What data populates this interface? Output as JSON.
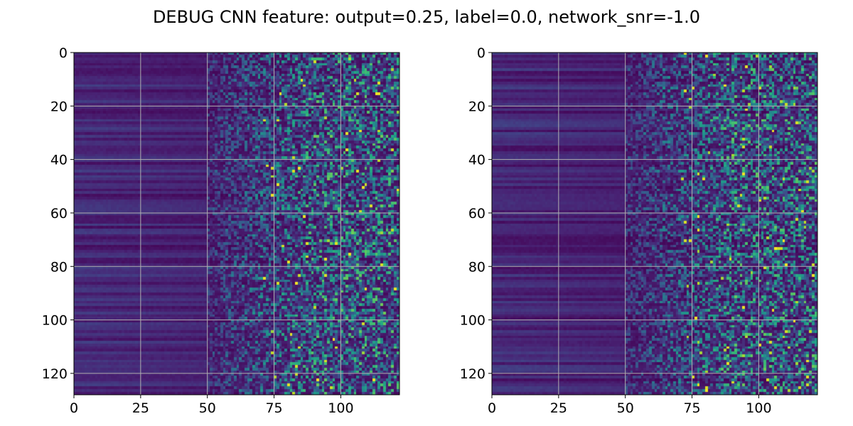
{
  "figure": {
    "title": "DEBUG CNN feature: output=0.25, label=0.0, network_snr=-1.0"
  },
  "chart_data": [
    {
      "type": "heatmap",
      "title": "",
      "xlabel": "",
      "ylabel": "",
      "colormap": "viridis",
      "colors": {
        "low": "#440154",
        "mid": "#21918c",
        "high": "#fde725"
      },
      "rows": 128,
      "cols": 122,
      "xlim": [
        0,
        122
      ],
      "ylim": [
        128,
        0
      ],
      "x_ticks": [
        0,
        25,
        50,
        75,
        100
      ],
      "x_tick_labels": [
        "0",
        "25",
        "50",
        "75",
        "100"
      ],
      "y_ticks": [
        0,
        20,
        40,
        60,
        80,
        100,
        120
      ],
      "y_tick_labels": [
        "0",
        "20",
        "40",
        "60",
        "80",
        "100",
        "120"
      ],
      "grid": true,
      "pattern": "low-valued dark banded rows for columns 0-50, increasingly noisy and brighter values toward columns 75-122"
    },
    {
      "type": "heatmap",
      "title": "",
      "xlabel": "",
      "ylabel": "",
      "colormap": "viridis",
      "colors": {
        "low": "#440154",
        "mid": "#21918c",
        "high": "#fde725"
      },
      "rows": 128,
      "cols": 122,
      "xlim": [
        0,
        122
      ],
      "ylim": [
        128,
        0
      ],
      "x_ticks": [
        0,
        25,
        50,
        75,
        100
      ],
      "x_tick_labels": [
        "0",
        "25",
        "50",
        "75",
        "100"
      ],
      "y_ticks": [
        0,
        20,
        40,
        60,
        80,
        100,
        120
      ],
      "y_tick_labels": [
        "0",
        "20",
        "40",
        "60",
        "80",
        "100",
        "120"
      ],
      "grid": true,
      "pattern": "low-valued dark banded rows for columns 0-50, increasingly noisy and brighter values toward columns 75-122"
    }
  ]
}
